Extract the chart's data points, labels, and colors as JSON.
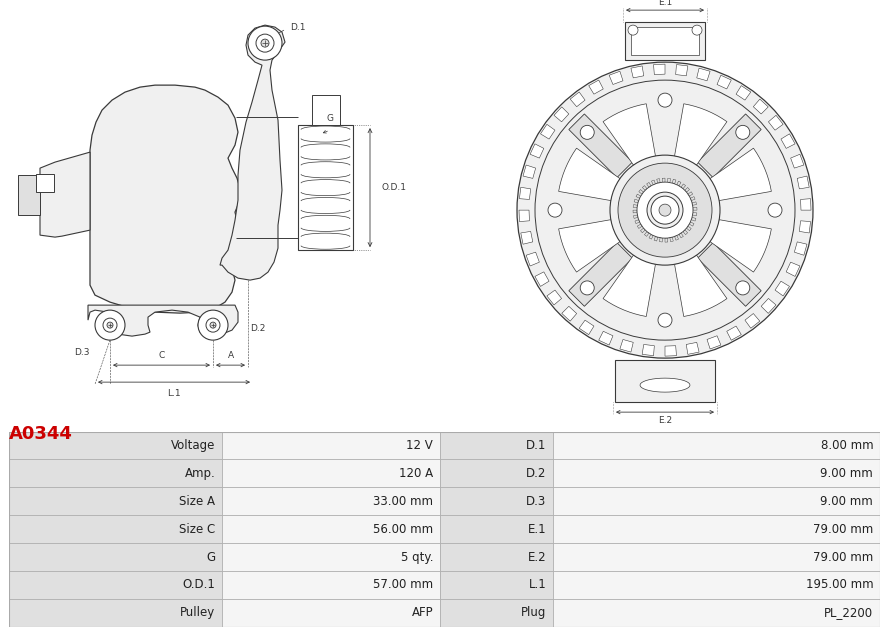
{
  "title": "A0344",
  "title_color": "#cc0000",
  "bg_color": "#ffffff",
  "lc": "#3a3a3a",
  "dc": "#3a3a3a",
  "table": {
    "rows": [
      [
        "Voltage",
        "12 V",
        "D.1",
        "8.00 mm"
      ],
      [
        "Amp.",
        "120 A",
        "D.2",
        "9.00 mm"
      ],
      [
        "Size A",
        "33.00 mm",
        "D.3",
        "9.00 mm"
      ],
      [
        "Size C",
        "56.00 mm",
        "E.1",
        "79.00 mm"
      ],
      [
        "G",
        "5 qty.",
        "E.2",
        "79.00 mm"
      ],
      [
        "O.D.1",
        "57.00 mm",
        "L.1",
        "195.00 mm"
      ],
      [
        "Pulley",
        "AFP",
        "Plug",
        "PL_2200"
      ]
    ],
    "label_bg": "#e0e0e0",
    "val_bg": "#f5f5f5",
    "border_color": "#aaaaaa",
    "text_color": "#222222",
    "font_size": 8.5
  }
}
